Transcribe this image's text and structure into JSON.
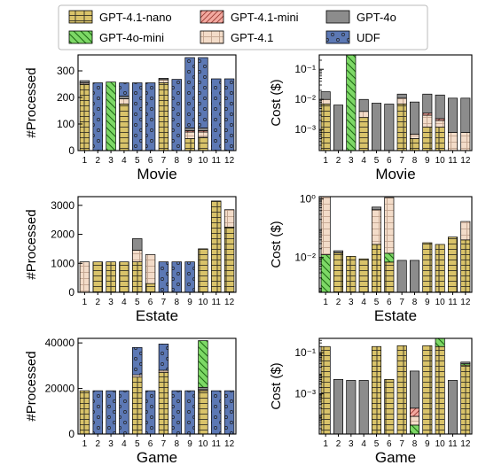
{
  "legend": [
    {
      "key": "nano",
      "label": "GPT-4.1-nano"
    },
    {
      "key": "mini41",
      "label": "GPT-4.1-mini"
    },
    {
      "key": "gpt4o",
      "label": "GPT-4o"
    },
    {
      "key": "mini4o",
      "label": "GPT-4o-mini"
    },
    {
      "key": "gpt41",
      "label": "GPT-4.1"
    },
    {
      "key": "udf",
      "label": "UDF"
    }
  ],
  "colors": {
    "nano": "#d9c36a",
    "mini41": "#f3a9a0",
    "gpt4o": "#8c8c8c",
    "mini4o": "#7dd866",
    "gpt41": "#f3dcc9",
    "udf": "#5c78b4"
  },
  "chart_data": [
    {
      "type": "bar",
      "stacked": true,
      "scale": "linear",
      "xlabel": "Movie",
      "ylabel": "#Processed",
      "categories": [
        "1",
        "2",
        "3",
        "4",
        "5",
        "6",
        "7",
        "8",
        "9",
        "10",
        "11",
        "12"
      ],
      "ylim": [
        0,
        360
      ],
      "yticks": [
        0,
        100,
        200,
        300
      ],
      "stacks": [
        [
          {
            "s": "nano",
            "v": 250
          },
          {
            "s": "gpt41",
            "v": 5
          },
          {
            "s": "gpt4o",
            "v": 8
          }
        ],
        [
          {
            "s": "udf",
            "v": 255
          }
        ],
        [
          {
            "s": "mini4o",
            "v": 258
          }
        ],
        [
          {
            "s": "nano",
            "v": 175
          },
          {
            "s": "gpt41",
            "v": 20
          },
          {
            "s": "gpt4o",
            "v": 10
          },
          {
            "s": "udf",
            "v": 50
          }
        ],
        [
          {
            "s": "udf",
            "v": 255
          }
        ],
        [
          {
            "s": "udf",
            "v": 255
          }
        ],
        [
          {
            "s": "nano",
            "v": 255
          },
          {
            "s": "gpt41",
            "v": 12
          },
          {
            "s": "gpt4o",
            "v": 5
          }
        ],
        [
          {
            "s": "udf",
            "v": 268
          }
        ],
        [
          {
            "s": "nano",
            "v": 45
          },
          {
            "s": "gpt41",
            "v": 25
          },
          {
            "s": "mini41",
            "v": 5
          },
          {
            "s": "gpt4o",
            "v": 10
          },
          {
            "s": "udf",
            "v": 265
          }
        ],
        [
          {
            "s": "nano",
            "v": 50
          },
          {
            "s": "gpt41",
            "v": 20
          },
          {
            "s": "mini41",
            "v": 5
          },
          {
            "s": "gpt4o",
            "v": 10
          },
          {
            "s": "udf",
            "v": 265
          }
        ],
        [
          {
            "s": "udf",
            "v": 270
          }
        ],
        [
          {
            "s": "udf",
            "v": 270
          }
        ]
      ]
    },
    {
      "type": "bar",
      "stacked": true,
      "scale": "log",
      "xlabel": "Movie",
      "ylabel": "Cost ($)",
      "categories": [
        "1",
        "2",
        "3",
        "4",
        "5",
        "6",
        "7",
        "8",
        "9",
        "10",
        "11",
        "12"
      ],
      "ylim": [
        0.0002,
        0.3
      ],
      "yticks": [
        0.001,
        0.01,
        0.1
      ],
      "yticklabels": [
        "10⁻³",
        "10⁻²",
        "10⁻¹"
      ],
      "stacks": [
        [
          {
            "s": "nano",
            "v": 0.007
          },
          {
            "s": "gpt41",
            "v": 0.003
          },
          {
            "s": "gpt4o",
            "v": 0.008
          }
        ],
        [
          {
            "s": "gpt4o",
            "v": 0.0065
          }
        ],
        [
          {
            "s": "mini4o",
            "v": 0.3
          }
        ],
        [
          {
            "s": "nano",
            "v": 0.0025
          },
          {
            "s": "gpt41",
            "v": 0.0015
          },
          {
            "s": "gpt4o",
            "v": 0.006
          }
        ],
        [
          {
            "s": "gpt4o",
            "v": 0.0075
          }
        ],
        [
          {
            "s": "gpt4o",
            "v": 0.007
          }
        ],
        [
          {
            "s": "nano",
            "v": 0.007
          },
          {
            "s": "gpt41",
            "v": 0.004
          },
          {
            "s": "gpt4o",
            "v": 0.004
          }
        ],
        [
          {
            "s": "nano",
            "v": 0.0005
          },
          {
            "s": "gpt41",
            "v": 0.0002
          },
          {
            "s": "gpt4o",
            "v": 0.0075
          }
        ],
        [
          {
            "s": "nano",
            "v": 0.0012
          },
          {
            "s": "gpt41",
            "v": 0.0018
          },
          {
            "s": "mini41",
            "v": 0.0005
          },
          {
            "s": "gpt4o",
            "v": 0.0115
          }
        ],
        [
          {
            "s": "nano",
            "v": 0.0012
          },
          {
            "s": "gpt41",
            "v": 0.0008
          },
          {
            "s": "mini41",
            "v": 0.0003
          },
          {
            "s": "gpt4o",
            "v": 0.0117
          }
        ],
        [
          {
            "s": "gpt41",
            "v": 0.0008
          },
          {
            "s": "gpt4o",
            "v": 0.0102
          }
        ],
        [
          {
            "s": "gpt41",
            "v": 0.0008
          },
          {
            "s": "gpt4o",
            "v": 0.0102
          }
        ]
      ]
    },
    {
      "type": "bar",
      "stacked": true,
      "scale": "linear",
      "xlabel": "Estate",
      "ylabel": "#Processed",
      "categories": [
        "1",
        "2",
        "3",
        "4",
        "5",
        "6",
        "7",
        "8",
        "9",
        "10",
        "11",
        "12"
      ],
      "ylim": [
        0,
        3300
      ],
      "yticks": [
        0,
        1000,
        2000,
        3000
      ],
      "stacks": [
        [
          {
            "s": "gpt41",
            "v": 1050
          }
        ],
        [
          {
            "s": "nano",
            "v": 1050
          }
        ],
        [
          {
            "s": "nano",
            "v": 1050
          }
        ],
        [
          {
            "s": "nano",
            "v": 1050
          }
        ],
        [
          {
            "s": "nano",
            "v": 1050
          },
          {
            "s": "gpt41",
            "v": 400
          },
          {
            "s": "gpt4o",
            "v": 400
          }
        ],
        [
          {
            "s": "nano",
            "v": 300
          },
          {
            "s": "gpt41",
            "v": 1000
          }
        ],
        [
          {
            "s": "udf",
            "v": 1050
          }
        ],
        [
          {
            "s": "udf",
            "v": 1050
          }
        ],
        [
          {
            "s": "udf",
            "v": 1050
          }
        ],
        [
          {
            "s": "nano",
            "v": 1500
          }
        ],
        [
          {
            "s": "nano",
            "v": 3150
          }
        ],
        [
          {
            "s": "nano",
            "v": 2250
          },
          {
            "s": "gpt41",
            "v": 600
          }
        ]
      ]
    },
    {
      "type": "bar",
      "stacked": true,
      "scale": "log",
      "xlabel": "Estate",
      "ylabel": "Cost ($)",
      "categories": [
        "1",
        "2",
        "3",
        "4",
        "5",
        "6",
        "7",
        "8",
        "9",
        "10",
        "11",
        "12"
      ],
      "ylim": [
        0.00065,
        1.2
      ],
      "yticks": [
        0.01,
        1
      ],
      "yticklabels": [
        "10⁻²",
        "10⁰"
      ],
      "stacks": [
        [
          {
            "s": "mini4o",
            "v": 0.0125
          },
          {
            "s": "gpt41",
            "v": 1.19
          }
        ],
        [
          {
            "s": "nano",
            "v": 0.0145
          },
          {
            "s": "gpt4o",
            "v": 0.0025
          }
        ],
        [
          {
            "s": "nano",
            "v": 0.011
          }
        ],
        [
          {
            "s": "nano",
            "v": 0.009
          }
        ],
        [
          {
            "s": "nano",
            "v": 0.028
          },
          {
            "s": "gpt41",
            "v": 0.4
          },
          {
            "s": "gpt4o",
            "v": 0.1
          }
        ],
        [
          {
            "s": "nano",
            "v": 0.007
          },
          {
            "s": "mini4o",
            "v": 0.007
          },
          {
            "s": "gpt41",
            "v": 1.1
          }
        ],
        [
          {
            "s": "gpt4o",
            "v": 0.008
          }
        ],
        [
          {
            "s": "gpt4o",
            "v": 0.008
          }
        ],
        [
          {
            "s": "nano",
            "v": 0.032
          }
        ],
        [
          {
            "s": "nano",
            "v": 0.028
          }
        ],
        [
          {
            "s": "nano",
            "v": 0.05
          }
        ],
        [
          {
            "s": "nano",
            "v": 0.04
          },
          {
            "s": "gpt41",
            "v": 0.13
          }
        ]
      ]
    },
    {
      "type": "bar",
      "stacked": true,
      "scale": "linear",
      "xlabel": "Game",
      "ylabel": "#Processed",
      "categories": [
        "1",
        "2",
        "3",
        "4",
        "5",
        "6",
        "7",
        "8",
        "9",
        "10",
        "11",
        "12"
      ],
      "ylim": [
        0,
        42000
      ],
      "yticks": [
        0,
        20000,
        40000
      ],
      "stacks": [
        [
          {
            "s": "nano",
            "v": 19000
          }
        ],
        [
          {
            "s": "udf",
            "v": 19000
          }
        ],
        [
          {
            "s": "udf",
            "v": 19000
          }
        ],
        [
          {
            "s": "udf",
            "v": 19000
          }
        ],
        [
          {
            "s": "nano",
            "v": 25000
          },
          {
            "s": "gpt41",
            "v": 1000
          },
          {
            "s": "udf",
            "v": 12000
          }
        ],
        [
          {
            "s": "udf",
            "v": 19000
          }
        ],
        [
          {
            "s": "nano",
            "v": 27000
          },
          {
            "s": "gpt41",
            "v": 1000
          },
          {
            "s": "udf",
            "v": 11500
          }
        ],
        [
          {
            "s": "udf",
            "v": 19000
          }
        ],
        [
          {
            "s": "udf",
            "v": 19000
          }
        ],
        [
          {
            "s": "nano",
            "v": 19000
          },
          {
            "s": "gpt41",
            "v": 500
          },
          {
            "s": "gpt4o",
            "v": 1000
          },
          {
            "s": "mini4o",
            "v": 20500
          }
        ],
        [
          {
            "s": "udf",
            "v": 19000
          }
        ],
        [
          {
            "s": "udf",
            "v": 19000
          }
        ]
      ]
    },
    {
      "type": "bar",
      "stacked": true,
      "scale": "log",
      "xlabel": "Game",
      "ylabel": "Cost ($)",
      "categories": [
        "1",
        "2",
        "3",
        "4",
        "5",
        "6",
        "7",
        "8",
        "9",
        "10",
        "11",
        "12"
      ],
      "ylim": [
        1.1e-05,
        0.5
      ],
      "yticks": [
        0.001,
        0.1
      ],
      "yticklabels": [
        "10⁻³",
        "10⁻¹"
      ],
      "stacks": [
        [
          {
            "s": "nano",
            "v": 0.2
          }
        ],
        [
          {
            "s": "gpt4o",
            "v": 0.005
          }
        ],
        [
          {
            "s": "gpt4o",
            "v": 0.0045
          }
        ],
        [
          {
            "s": "gpt4o",
            "v": 0.0045
          }
        ],
        [
          {
            "s": "nano",
            "v": 0.2
          }
        ],
        [
          {
            "s": "nano",
            "v": 0.005
          }
        ],
        [
          {
            "s": "nano",
            "v": 0.22
          }
        ],
        [
          {
            "s": "mini4o",
            "v": 3e-05
          },
          {
            "s": "gpt41",
            "v": 5e-05
          },
          {
            "s": "mini41",
            "v": 0.00012
          },
          {
            "s": "gpt4o",
            "v": 0.0126
          }
        ],
        [
          {
            "s": "nano",
            "v": 0.22
          }
        ],
        [
          {
            "s": "nano",
            "v": 0.2
          },
          {
            "s": "mini4o",
            "v": 0.3
          }
        ],
        [
          {
            "s": "gpt4o",
            "v": 0.0045
          }
        ],
        [
          {
            "s": "nano",
            "v": 0.025
          },
          {
            "s": "mini4o",
            "v": 0.004
          },
          {
            "s": "gpt4o",
            "v": 0.006
          }
        ]
      ]
    }
  ]
}
